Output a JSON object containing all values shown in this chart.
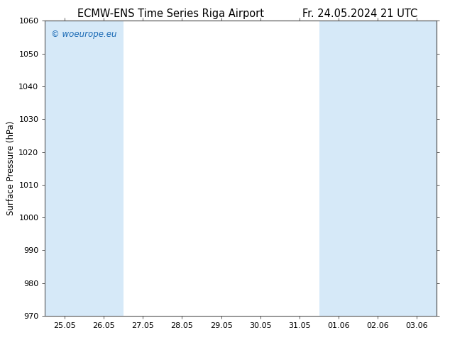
{
  "title_left": "ECMW-ENS Time Series Riga Airport",
  "title_right": "Fr. 24.05.2024 21 UTC",
  "ylabel": "Surface Pressure (hPa)",
  "ylim": [
    970,
    1060
  ],
  "yticks": [
    970,
    980,
    990,
    1000,
    1010,
    1020,
    1030,
    1040,
    1050,
    1060
  ],
  "xtick_labels": [
    "25.05",
    "26.05",
    "27.05",
    "28.05",
    "29.05",
    "30.05",
    "31.05",
    "01.06",
    "02.06",
    "03.06"
  ],
  "watermark": "© woeurope.eu",
  "watermark_color": "#1a6ab5",
  "bg_color": "#ffffff",
  "plot_bg_color": "#ffffff",
  "band_color": "#d6e9f8",
  "shaded_tick_indices": [
    0,
    1,
    7,
    8,
    9
  ],
  "title_fontsize": 10.5,
  "tick_fontsize": 8,
  "ylabel_fontsize": 8.5,
  "grid_color": "#cccccc",
  "border_color": "#555555"
}
